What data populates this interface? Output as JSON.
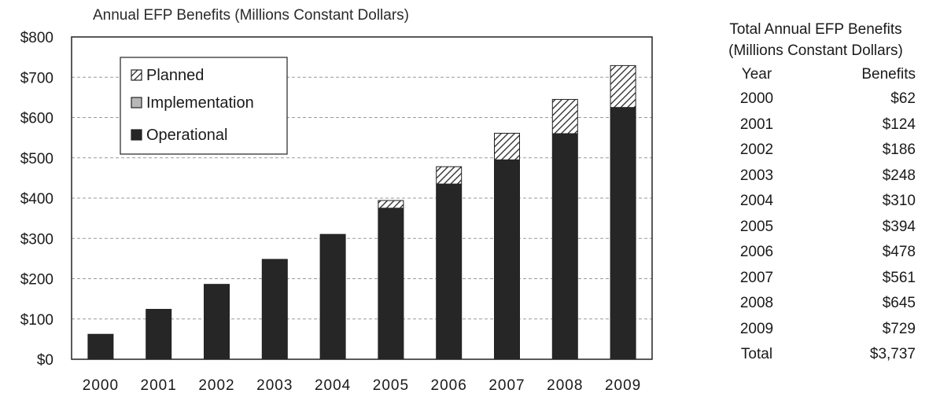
{
  "chart_data": {
    "type": "bar",
    "stacked": true,
    "title": "Annual EFP Benefits (Millions Constant Dollars)",
    "xlabel": "",
    "ylabel": "",
    "ylim": [
      0,
      800
    ],
    "y_ticks": [
      "$0",
      "$100",
      "$200",
      "$300",
      "$400",
      "$500",
      "$600",
      "$700",
      "$800"
    ],
    "y_tick_values": [
      0,
      100,
      200,
      300,
      400,
      500,
      600,
      700,
      800
    ],
    "grid": "horizontal dashed",
    "legend_position": "top-left",
    "categories": [
      "2000",
      "2001",
      "2002",
      "2003",
      "2004",
      "2005",
      "2006",
      "2007",
      "2008",
      "2009"
    ],
    "series": [
      {
        "name": "Operational",
        "pattern": "solid",
        "color": "#262626",
        "values": [
          62,
          124,
          186,
          248,
          310,
          375,
          435,
          495,
          560,
          625
        ]
      },
      {
        "name": "Implementation",
        "pattern": "light-gray",
        "color": "#b8b8b8",
        "values": [
          0,
          0,
          0,
          0,
          0,
          0,
          0,
          0,
          0,
          0
        ]
      },
      {
        "name": "Planned",
        "pattern": "diagonal-hatch",
        "color": "#262626",
        "values": [
          0,
          0,
          0,
          0,
          0,
          19,
          43,
          66,
          85,
          104
        ]
      }
    ],
    "totals": [
      62,
      124,
      186,
      248,
      310,
      394,
      478,
      561,
      645,
      729
    ]
  },
  "legend": {
    "items": [
      {
        "label": "Planned",
        "pattern": "diagonal-hatch"
      },
      {
        "label": "Implementation",
        "pattern": "light-gray"
      },
      {
        "label": "Operational",
        "pattern": "solid"
      }
    ]
  },
  "summary_table": {
    "title_line1": "Total Annual EFP Benefits",
    "title_line2": "(Millions Constant Dollars)",
    "header_year": "Year",
    "header_benefits": "Benefits",
    "rows": [
      {
        "year": "2000",
        "benefits": "$62"
      },
      {
        "year": "2001",
        "benefits": "$124"
      },
      {
        "year": "2002",
        "benefits": "$186"
      },
      {
        "year": "2003",
        "benefits": "$248"
      },
      {
        "year": "2004",
        "benefits": "$310"
      },
      {
        "year": "2005",
        "benefits": "$394"
      },
      {
        "year": "2006",
        "benefits": "$478"
      },
      {
        "year": "2007",
        "benefits": "$561"
      },
      {
        "year": "2008",
        "benefits": "$645"
      },
      {
        "year": "2009",
        "benefits": "$729"
      }
    ],
    "total_label": "Total",
    "total_value": "$3,737"
  }
}
